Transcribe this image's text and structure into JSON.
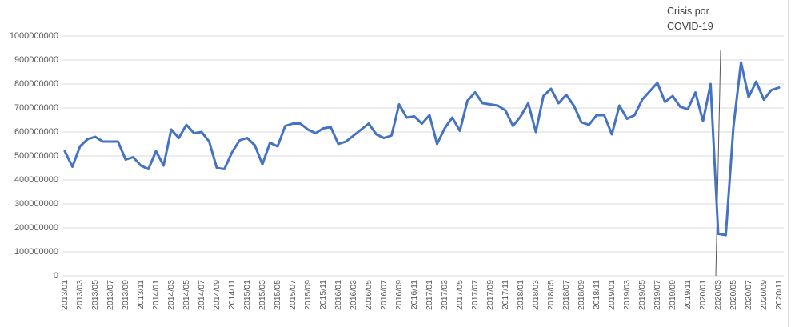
{
  "chart_data": {
    "type": "line",
    "title": "",
    "xlabel": "",
    "ylabel": "",
    "x": [
      "2013/01",
      "2013/02",
      "2013/03",
      "2013/04",
      "2013/05",
      "2013/06",
      "2013/07",
      "2013/08",
      "2013/09",
      "2013/10",
      "2013/11",
      "2013/12",
      "2014/01",
      "2014/02",
      "2014/03",
      "2014/04",
      "2014/05",
      "2014/06",
      "2014/07",
      "2014/08",
      "2014/09",
      "2014/10",
      "2014/11",
      "2014/12",
      "2015/01",
      "2015/02",
      "2015/03",
      "2015/04",
      "2015/05",
      "2015/06",
      "2015/07",
      "2015/08",
      "2015/09",
      "2015/10",
      "2015/11",
      "2015/12",
      "2016/01",
      "2016/02",
      "2016/03",
      "2016/04",
      "2016/05",
      "2016/06",
      "2016/07",
      "2016/08",
      "2016/09",
      "2016/10",
      "2016/11",
      "2016/12",
      "2017/01",
      "2017/02",
      "2017/03",
      "2017/04",
      "2017/05",
      "2017/06",
      "2017/07",
      "2017/08",
      "2017/09",
      "2017/10",
      "2017/11",
      "2017/12",
      "2018/01",
      "2018/02",
      "2018/03",
      "2018/04",
      "2018/05",
      "2018/06",
      "2018/07",
      "2018/08",
      "2018/09",
      "2018/10",
      "2018/11",
      "2018/12",
      "2019/01",
      "2019/02",
      "2019/03",
      "2019/04",
      "2019/05",
      "2019/06",
      "2019/07",
      "2019/08",
      "2019/09",
      "2019/10",
      "2019/11",
      "2019/12",
      "2020/01",
      "2020/02",
      "2020/03",
      "2020/04",
      "2020/05",
      "2020/06",
      "2020/07",
      "2020/08",
      "2020/09",
      "2020/10",
      "2020/11"
    ],
    "values": [
      520000000,
      455000000,
      540000000,
      570000000,
      580000000,
      560000000,
      560000000,
      560000000,
      485000000,
      495000000,
      460000000,
      445000000,
      520000000,
      460000000,
      610000000,
      575000000,
      630000000,
      595000000,
      600000000,
      560000000,
      450000000,
      445000000,
      515000000,
      565000000,
      575000000,
      545000000,
      465000000,
      555000000,
      540000000,
      625000000,
      635000000,
      635000000,
      610000000,
      595000000,
      615000000,
      620000000,
      550000000,
      560000000,
      585000000,
      610000000,
      635000000,
      590000000,
      575000000,
      585000000,
      715000000,
      660000000,
      665000000,
      635000000,
      670000000,
      550000000,
      615000000,
      660000000,
      605000000,
      730000000,
      765000000,
      720000000,
      715000000,
      710000000,
      690000000,
      625000000,
      665000000,
      720000000,
      600000000,
      750000000,
      780000000,
      720000000,
      755000000,
      710000000,
      640000000,
      630000000,
      670000000,
      670000000,
      590000000,
      710000000,
      655000000,
      670000000,
      735000000,
      770000000,
      805000000,
      725000000,
      750000000,
      705000000,
      695000000,
      765000000,
      645000000,
      800000000,
      175000000,
      170000000,
      620000000,
      890000000,
      745000000,
      810000000,
      735000000,
      775000000,
      785000000
    ],
    "x_tick_step": 2,
    "y_ticks": [
      0,
      100000000,
      200000000,
      300000000,
      400000000,
      500000000,
      600000000,
      700000000,
      800000000,
      900000000,
      1000000000
    ],
    "ylim": [
      0,
      1000000000
    ],
    "grid": true,
    "legend": null,
    "line_color": "#4472C4",
    "gridline_color": "#D9D9D9",
    "axis_color": "#D9D9D9",
    "tick_text_color": "#595959",
    "annotation": {
      "text": "Crisis por\nCOVID-19",
      "points_to_x": "2020/03",
      "leader_color": "#595959"
    }
  }
}
